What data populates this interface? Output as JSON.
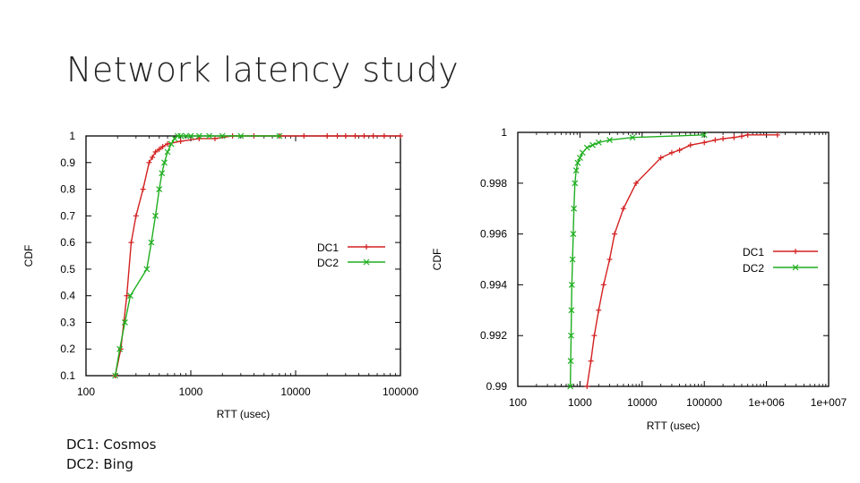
{
  "slide": {
    "title": "Network latency study",
    "notes": [
      "DC1: Cosmos",
      "DC2: Bing"
    ]
  },
  "colors": {
    "DC1": "#d42020",
    "DC2": "#1fae1f"
  },
  "chart_data": [
    {
      "type": "line",
      "title": "",
      "xlabel": "RTT (usec)",
      "ylabel": "CDF",
      "xscale": "log",
      "xlim": [
        100,
        100000
      ],
      "ylim": [
        0.1,
        1.0
      ],
      "xticks": [
        100,
        1000,
        10000,
        100000
      ],
      "xtick_labels": [
        "100",
        "1000",
        "10000",
        "100000"
      ],
      "yticks": [
        0.1,
        0.2,
        0.3,
        0.4,
        0.5,
        0.6,
        0.7,
        0.8,
        0.9,
        1.0
      ],
      "ytick_labels": [
        "0.1",
        "0.2",
        "0.3",
        "0.4",
        "0.5",
        "0.6",
        "0.7",
        "0.8",
        "0.9",
        "1"
      ],
      "grid": false,
      "legend": "right",
      "series": [
        {
          "name": "DC1",
          "marker": "+",
          "x": [
            190,
            215,
            245,
            270,
            300,
            350,
            400,
            430,
            460,
            500,
            540,
            600,
            800,
            1200,
            1700,
            2500,
            4000,
            7000,
            12000,
            20000,
            25000,
            30000,
            37000,
            45000,
            55000,
            70000,
            100000
          ],
          "y": [
            0.1,
            0.2,
            0.4,
            0.6,
            0.7,
            0.8,
            0.9,
            0.92,
            0.94,
            0.95,
            0.96,
            0.97,
            0.98,
            0.99,
            0.99,
            1.0,
            1.0,
            1.0,
            1.0,
            1.0,
            1.0,
            1.0,
            1.0,
            1.0,
            1.0,
            1.0,
            1.0
          ]
        },
        {
          "name": "DC2",
          "marker": "x",
          "x": [
            190,
            210,
            235,
            265,
            380,
            420,
            460,
            500,
            530,
            560,
            600,
            650,
            700,
            750,
            800,
            900,
            1000,
            1200,
            1500,
            2000,
            3000,
            7000
          ],
          "y": [
            0.1,
            0.2,
            0.3,
            0.4,
            0.5,
            0.6,
            0.7,
            0.8,
            0.86,
            0.9,
            0.94,
            0.97,
            0.99,
            1.0,
            1.0,
            1.0,
            1.0,
            1.0,
            1.0,
            1.0,
            1.0,
            1.0
          ]
        }
      ]
    },
    {
      "type": "line",
      "title": "",
      "xlabel": "RTT (usec)",
      "ylabel": "CDF",
      "xscale": "log",
      "xlim": [
        100,
        10000000
      ],
      "ylim": [
        0.99,
        1.0
      ],
      "xticks": [
        100,
        1000,
        10000,
        100000,
        1000000,
        10000000
      ],
      "xtick_labels": [
        "100",
        "1000",
        "10000",
        "100000",
        "1e+006",
        "1e+007"
      ],
      "yticks": [
        0.99,
        0.992,
        0.994,
        0.996,
        0.998,
        1.0
      ],
      "ytick_labels": [
        "0.99",
        "0.992",
        "0.994",
        "0.996",
        "0.998",
        "1"
      ],
      "grid": false,
      "legend": "right",
      "series": [
        {
          "name": "DC1",
          "marker": "+",
          "x": [
            1300,
            1500,
            1700,
            2000,
            2400,
            3000,
            3600,
            5000,
            8000,
            20000,
            30000,
            40000,
            60000,
            100000,
            150000,
            200000,
            300000,
            400000,
            500000,
            1500000
          ],
          "y": [
            0.99,
            0.991,
            0.992,
            0.993,
            0.994,
            0.995,
            0.996,
            0.997,
            0.998,
            0.999,
            0.9992,
            0.9993,
            0.9995,
            0.9996,
            0.9997,
            0.99975,
            0.9998,
            0.99985,
            0.9999,
            0.9999
          ]
        },
        {
          "name": "DC2",
          "marker": "x",
          "x": [
            700,
            710,
            720,
            730,
            740,
            760,
            780,
            800,
            830,
            870,
            920,
            1000,
            1100,
            1300,
            1600,
            2000,
            3000,
            7000,
            100000
          ],
          "y": [
            0.99,
            0.991,
            0.992,
            0.993,
            0.994,
            0.995,
            0.996,
            0.997,
            0.998,
            0.9985,
            0.9988,
            0.999,
            0.9992,
            0.9994,
            0.9995,
            0.9996,
            0.9997,
            0.9998,
            0.9999
          ]
        }
      ]
    }
  ]
}
